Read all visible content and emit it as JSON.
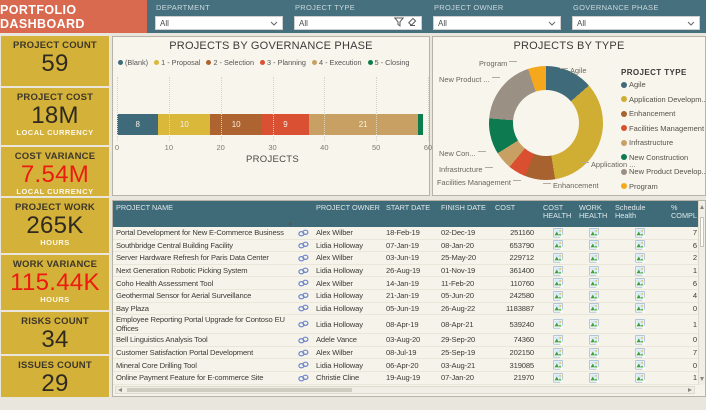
{
  "header": {
    "title": "PORTFOLIO DASHBOARD",
    "filters": [
      {
        "label": "DEPARTMENT",
        "value": "All"
      },
      {
        "label": "PROJECT TYPE",
        "value": "All"
      },
      {
        "label": "PROJECT OWNER",
        "value": "All"
      },
      {
        "label": "GOVERNANCE PHASE",
        "value": "All"
      }
    ]
  },
  "kpis": [
    {
      "title": "PROJECT COUNT",
      "value": "59",
      "unit": ""
    },
    {
      "title": "PROJECT COST",
      "value": "18M",
      "unit": "LOCAL CURRENCY"
    },
    {
      "title": "COST VARIANCE",
      "value": "7.54M",
      "unit": "LOCAL CURRENCY"
    },
    {
      "title": "PROJECT WORK",
      "value": "265K",
      "unit": "HOURS"
    },
    {
      "title": "WORK VARIANCE",
      "value": "115.44K",
      "unit": "HOURS"
    },
    {
      "title": "RISKS COUNT",
      "value": "34",
      "unit": ""
    },
    {
      "title": "ISSUES COUNT",
      "value": "29",
      "unit": ""
    }
  ],
  "chart_data": [
    {
      "type": "bar",
      "title": "PROJECTS BY GOVERNANCE PHASE",
      "stacked": true,
      "orientation": "horizontal",
      "xlabel": "PROJECTS",
      "xlim": [
        0,
        60
      ],
      "xticks": [
        0,
        10,
        20,
        30,
        40,
        50,
        60
      ],
      "grid": "dotted-vertical",
      "legend_position": "top",
      "series": [
        {
          "name": "(Blank)",
          "value": 8,
          "color": "#3e6a79"
        },
        {
          "name": "1 - Proposal",
          "value": 10,
          "color": "#d9b83a"
        },
        {
          "name": "2 - Selection",
          "value": 10,
          "color": "#ae6430"
        },
        {
          "name": "3 - Planning",
          "value": 9,
          "color": "#da5033"
        },
        {
          "name": "4 - Execution",
          "value": 21,
          "color": "#c9a063"
        },
        {
          "name": "5 - Closing",
          "value": 1,
          "color": "#0d7d4b"
        }
      ]
    },
    {
      "type": "pie",
      "donut": true,
      "title": "PROJECTS BY TYPE",
      "legend_title": "PROJECT TYPE",
      "legend_position": "right",
      "total": 59,
      "series": [
        {
          "name": "Agile",
          "value": 8,
          "color": "#3e6a79"
        },
        {
          "name": "Application Developm...",
          "value": 20,
          "color": "#d0ad33"
        },
        {
          "name": "Enhancement",
          "value": 5,
          "color": "#a8622f"
        },
        {
          "name": "Facilities Management",
          "value": 3,
          "color": "#d94f30"
        },
        {
          "name": "Infrastructure",
          "value": 3,
          "color": "#c9a063"
        },
        {
          "name": "New Construction",
          "value": 6,
          "color": "#0e7a50"
        },
        {
          "name": "New Product Develop...",
          "value": 11,
          "color": "#9a9083"
        },
        {
          "name": "Program",
          "value": 3,
          "color": "#f5a81c"
        }
      ],
      "callouts": [
        "Program",
        "Agile",
        "New Product ...",
        "New Con...",
        "Infrastructure",
        "Facilities Management",
        "Enhancement",
        "Application ..."
      ]
    }
  ],
  "table": {
    "columns": [
      "PROJECT NAME",
      "",
      "PROJECT OWNER",
      "START DATE",
      "FINISH DATE",
      "COST",
      "COST HEALTH",
      "WORK HEALTH",
      "Schedule Health",
      "% COMPL"
    ],
    "rows": [
      {
        "name": "Portal Development for New E-Commerce Business",
        "owner": "Alex Wilber",
        "start": "18-Feb-19",
        "finish": "02-Dec-19",
        "cost": "251160",
        "pct": "7"
      },
      {
        "name": "Southbridge Central Building Facility",
        "owner": "Lidia Holloway",
        "start": "07-Jan-19",
        "finish": "08-Jan-20",
        "cost": "653790",
        "pct": "6"
      },
      {
        "name": "Server Hardware Refresh for Paris Data Center",
        "owner": "Alex Wilber",
        "start": "03-Jun-19",
        "finish": "25-May-20",
        "cost": "229712",
        "pct": "2"
      },
      {
        "name": "Next Generation Robotic Picking System",
        "owner": "Lidia Holloway",
        "start": "26-Aug-19",
        "finish": "01-Nov-19",
        "cost": "361400",
        "pct": "1"
      },
      {
        "name": "Coho Health Assessment Tool",
        "owner": "Alex Wilber",
        "start": "14-Jan-19",
        "finish": "11-Feb-20",
        "cost": "110760",
        "pct": "6"
      },
      {
        "name": "Geothermal Sensor for Aerial Surveillance",
        "owner": "Lidia Holloway",
        "start": "21-Jan-19",
        "finish": "05-Jun-20",
        "cost": "242580",
        "pct": "4"
      },
      {
        "name": "Bay Plaza",
        "owner": "Lidia Holloway",
        "start": "05-Jun-19",
        "finish": "26-Aug-22",
        "cost": "1183887",
        "pct": "0"
      },
      {
        "name": "Employee Reporting Portal Upgrade for Contoso EU Offices",
        "owner": "Lidia Holloway",
        "start": "08-Apr-19",
        "finish": "08-Apr-21",
        "cost": "539240",
        "pct": "1"
      },
      {
        "name": "Bell Linguistics Analysis Tool",
        "owner": "Adele Vance",
        "start": "03-Aug-20",
        "finish": "29-Sep-20",
        "cost": "74360",
        "pct": "0"
      },
      {
        "name": "Customer Satisfaction Portal Development",
        "owner": "Alex Wilber",
        "start": "08-Jul-19",
        "finish": "25-Sep-19",
        "cost": "202150",
        "pct": "7"
      },
      {
        "name": "Mineral Core Drilling Tool",
        "owner": "Lidia Holloway",
        "start": "06-Apr-20",
        "finish": "03-Aug-21",
        "cost": "319085",
        "pct": "0"
      },
      {
        "name": "Online Payment Feature for E-commerce Site",
        "owner": "Christie Cline",
        "start": "19-Aug-19",
        "finish": "07-Jan-20",
        "cost": "21970",
        "pct": "1"
      }
    ]
  },
  "colors": {
    "banner": "#d9694f",
    "filterbar": "#46707e",
    "kpi_bg": "#d4b139",
    "kpi_variance_text": "#ec1b10",
    "table_header": "#3f6b79",
    "card_bg": "#f8f5ec"
  }
}
